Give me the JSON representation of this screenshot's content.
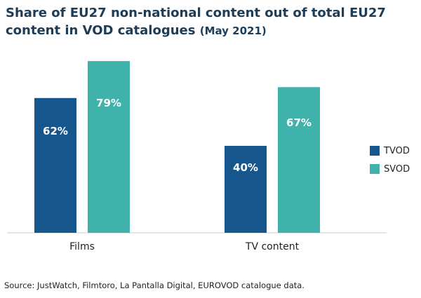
{
  "title": {
    "main": "Share of EU27 non-national content out of total EU27 content in VOD catalogues",
    "sub": "(May 2021)"
  },
  "source": "Source: JustWatch, Filmtoro, La Pantalla Digital, EUROVOD catalogue data.",
  "colors": {
    "TVOD": "#17568c",
    "SVOD": "#40b2ac",
    "axis": "#cccccc"
  },
  "chart_data": {
    "type": "bar",
    "title": "Share of EU27 non-national content out of total EU27 content in VOD catalogues (May 2021)",
    "categories": [
      "Films",
      "TV content"
    ],
    "series": [
      {
        "name": "TVOD",
        "values": [
          62,
          40
        ],
        "labels": [
          "62%",
          "40%"
        ]
      },
      {
        "name": "SVOD",
        "values": [
          79,
          67
        ],
        "labels": [
          "79%",
          "67%"
        ]
      }
    ],
    "ylim": [
      0,
      100
    ],
    "grid": false,
    "legend": "right"
  }
}
